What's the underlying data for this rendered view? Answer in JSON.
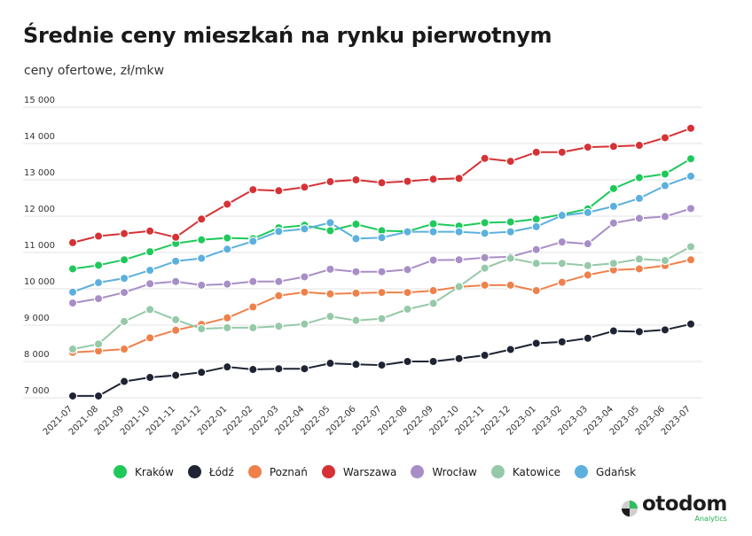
{
  "title": "Średnie ceny mieszkań na rynku pierwotnym",
  "subtitle": "ceny ofertowe, zł/mkw",
  "brand": {
    "name": "otodom",
    "sub": "Analytics"
  },
  "chart_data": {
    "type": "line",
    "ylim": [
      7000,
      15000
    ],
    "yticks": [
      7000,
      8000,
      9000,
      10000,
      11000,
      12000,
      13000,
      14000,
      15000
    ],
    "ytick_labels": [
      "7 000",
      "8 000",
      "9 000",
      "10 000",
      "11 000",
      "12 000",
      "13 000",
      "14 000",
      "15 000"
    ],
    "grid": true,
    "legend_position": "bottom",
    "categories": [
      "2021-07",
      "2021-08",
      "2021-09",
      "2021-10",
      "2021-11",
      "2021-12",
      "2022-01",
      "2022-02",
      "2022-03",
      "2022-04",
      "2022-05",
      "2022-06",
      "2022-07",
      "2022-08",
      "2022-09",
      "2022-10",
      "2022-11",
      "2022-12",
      "2023-01",
      "2023-02",
      "2023-03",
      "2023-04",
      "2023-05",
      "2023-06",
      "2023-07"
    ],
    "series": [
      {
        "name": "Kraków",
        "color": "#1ec95a",
        "values": [
          10550,
          10650,
          10800,
          11020,
          11250,
          11350,
          11400,
          11380,
          11680,
          11750,
          11600,
          11780,
          11600,
          11580,
          11790,
          11730,
          11820,
          11840,
          11920,
          12050,
          12200,
          12760,
          13060,
          13160,
          13580
        ]
      },
      {
        "name": "Łódź",
        "color": "#1e2433",
        "values": [
          7050,
          7050,
          7450,
          7560,
          7620,
          7700,
          7850,
          7780,
          7800,
          7800,
          7950,
          7920,
          7900,
          8000,
          8000,
          8080,
          8170,
          8330,
          8500,
          8540,
          8640,
          8840,
          8820,
          8870,
          9030
        ]
      },
      {
        "name": "Poznań",
        "color": "#f0804a",
        "values": [
          8250,
          8290,
          8340,
          8650,
          8860,
          9020,
          9200,
          9500,
          9810,
          9910,
          9860,
          9880,
          9900,
          9900,
          9950,
          10050,
          10100,
          10100,
          9950,
          10180,
          10380,
          10520,
          10550,
          10640,
          10800
        ]
      },
      {
        "name": "Warszawa",
        "color": "#d63235",
        "values": [
          11270,
          11450,
          11520,
          11590,
          11420,
          11920,
          12330,
          12730,
          12700,
          12800,
          12950,
          13000,
          12920,
          12960,
          13020,
          13040,
          13590,
          13510,
          13760,
          13760,
          13900,
          13920,
          13950,
          14160,
          14420
        ]
      },
      {
        "name": "Wrocław",
        "color": "#a88ec7",
        "values": [
          9610,
          9730,
          9900,
          10140,
          10200,
          10100,
          10130,
          10200,
          10200,
          10330,
          10540,
          10470,
          10470,
          10530,
          10790,
          10800,
          10860,
          10880,
          11080,
          11290,
          11240,
          11810,
          11940,
          11990,
          12210
        ]
      },
      {
        "name": "Katowice",
        "color": "#95c9a8",
        "values": [
          8340,
          8480,
          9100,
          9430,
          9150,
          8900,
          8930,
          8930,
          8970,
          9030,
          9240,
          9130,
          9180,
          9440,
          9600,
          10060,
          10570,
          10840,
          10700,
          10700,
          10640,
          10700,
          10820,
          10780,
          11160
        ]
      },
      {
        "name": "Gdańsk",
        "color": "#5bb0de",
        "values": [
          9910,
          10170,
          10290,
          10510,
          10760,
          10840,
          11090,
          11310,
          11580,
          11650,
          11820,
          11380,
          11410,
          11570,
          11570,
          11570,
          11530,
          11570,
          11710,
          12020,
          12100,
          12270,
          12490,
          12840,
          13100
        ]
      }
    ]
  }
}
